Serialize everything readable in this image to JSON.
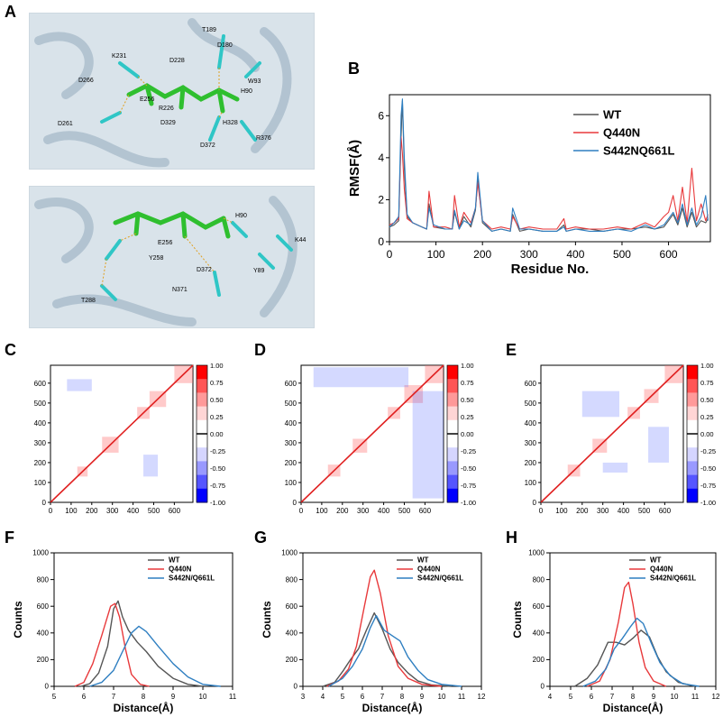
{
  "panels": {
    "A": "A",
    "B": "B",
    "C": "C",
    "D": "D",
    "E": "E",
    "F": "F",
    "G": "G",
    "H": "H"
  },
  "structure_top": {
    "residue_labels": [
      "T189",
      "K231",
      "D228",
      "D180",
      "W93",
      "D266",
      "E256",
      "R226",
      "H90",
      "D261",
      "D329",
      "H328",
      "R376",
      "D372"
    ]
  },
  "structure_bottom": {
    "residue_labels": [
      "H90",
      "K44",
      "E256",
      "Y258",
      "D372",
      "Y89",
      "N371",
      "T288"
    ]
  },
  "colors": {
    "wt": "#555555",
    "q440n": "#e8393b",
    "s442n": "#2f7fc1",
    "pos": "#ff0000",
    "neg": "#0000ff"
  },
  "chart_data": [
    {
      "id": "B",
      "type": "line",
      "xlabel": "Residue No.",
      "ylabel": "RMSF(Å)",
      "xlim": [
        0,
        690
      ],
      "ylim": [
        0,
        7
      ],
      "xticks": [
        "0",
        "100",
        "200",
        "300",
        "400",
        "500",
        "600"
      ],
      "yticks": [
        "0",
        "2",
        "4",
        "6"
      ],
      "legend_position": "top-right",
      "series": [
        {
          "name": "WT",
          "color": "#555555",
          "x": [
            0,
            10,
            20,
            25,
            28,
            32,
            38,
            50,
            70,
            80,
            85,
            95,
            120,
            135,
            140,
            150,
            160,
            175,
            185,
            190,
            200,
            220,
            240,
            260,
            265,
            280,
            300,
            330,
            360,
            375,
            380,
            400,
            430,
            460,
            490,
            520,
            550,
            570,
            590,
            600,
            610,
            620,
            630,
            640,
            650,
            660,
            670,
            680,
            685
          ],
          "y": [
            0.7,
            0.8,
            1.0,
            5.0,
            6.7,
            3.5,
            1.2,
            0.9,
            0.7,
            0.6,
            1.8,
            0.7,
            0.6,
            0.6,
            1.4,
            0.6,
            1.2,
            0.7,
            1.5,
            3.0,
            0.9,
            0.5,
            0.6,
            0.5,
            1.3,
            0.5,
            0.6,
            0.5,
            0.5,
            0.8,
            0.5,
            0.6,
            0.6,
            0.5,
            0.6,
            0.6,
            0.7,
            0.6,
            0.7,
            1.0,
            1.3,
            0.8,
            1.6,
            0.7,
            1.4,
            0.7,
            1.0,
            0.9,
            1.1
          ]
        },
        {
          "name": "Q440N",
          "color": "#e8393b",
          "x": [
            0,
            10,
            20,
            25,
            28,
            32,
            38,
            50,
            70,
            80,
            85,
            95,
            120,
            135,
            140,
            150,
            160,
            175,
            185,
            190,
            200,
            220,
            240,
            260,
            265,
            280,
            300,
            330,
            360,
            375,
            380,
            400,
            430,
            460,
            490,
            520,
            550,
            570,
            590,
            600,
            610,
            620,
            630,
            640,
            650,
            660,
            670,
            680,
            685
          ],
          "y": [
            0.8,
            0.9,
            1.1,
            5.0,
            4.2,
            2.5,
            1.1,
            0.9,
            0.7,
            0.6,
            2.4,
            0.7,
            0.7,
            0.6,
            2.2,
            0.7,
            1.4,
            0.9,
            1.6,
            2.8,
            1.0,
            0.6,
            0.7,
            0.6,
            1.2,
            0.6,
            0.7,
            0.6,
            0.6,
            1.1,
            0.6,
            0.7,
            0.6,
            0.6,
            0.7,
            0.6,
            0.9,
            0.7,
            1.2,
            1.4,
            2.2,
            1.0,
            2.6,
            0.9,
            3.5,
            1.0,
            1.8,
            1.0,
            1.3
          ]
        },
        {
          "name": "S442NQ661L",
          "color": "#2f7fc1",
          "x": [
            0,
            10,
            20,
            25,
            28,
            32,
            38,
            50,
            70,
            80,
            85,
            95,
            120,
            135,
            140,
            150,
            160,
            175,
            185,
            190,
            200,
            220,
            240,
            260,
            265,
            280,
            300,
            330,
            360,
            375,
            380,
            400,
            430,
            460,
            490,
            520,
            550,
            570,
            590,
            600,
            610,
            620,
            630,
            640,
            650,
            660,
            670,
            680,
            685
          ],
          "y": [
            0.7,
            0.9,
            1.2,
            6.0,
            6.8,
            4.0,
            1.3,
            0.9,
            0.7,
            0.6,
            1.6,
            0.8,
            0.6,
            0.6,
            1.5,
            0.6,
            1.0,
            0.8,
            1.6,
            3.3,
            1.0,
            0.5,
            0.6,
            0.5,
            1.6,
            0.6,
            0.6,
            0.5,
            0.5,
            0.7,
            0.5,
            0.6,
            0.5,
            0.5,
            0.6,
            0.5,
            0.8,
            0.6,
            0.8,
            1.1,
            1.4,
            0.9,
            1.8,
            0.8,
            1.6,
            0.8,
            1.2,
            2.2,
            1.0
          ]
        }
      ]
    },
    {
      "id": "C",
      "type": "heatmap",
      "xlim": [
        0,
        690
      ],
      "ylim": [
        0,
        690
      ],
      "xticks": [
        "0",
        "100",
        "200",
        "300",
        "400",
        "500",
        "600"
      ],
      "yticks": [
        "0",
        "100",
        "200",
        "300",
        "400",
        "500",
        "600"
      ],
      "colorbar_ticks": [
        "1.00",
        "0.75",
        "0.50",
        "0.25",
        "0.00",
        "-0.25",
        "-0.50",
        "-0.75",
        "-1.00"
      ],
      "blocks_pos": [
        [
          130,
          180
        ],
        [
          250,
          330
        ],
        [
          420,
          480
        ],
        [
          480,
          560
        ],
        [
          600,
          690
        ]
      ],
      "blocks_neg": [
        [
          [
            80,
            200
          ],
          [
            560,
            620
          ]
        ],
        [
          [
            450,
            520
          ],
          [
            130,
            240
          ]
        ]
      ]
    },
    {
      "id": "D",
      "type": "heatmap",
      "xlim": [
        0,
        690
      ],
      "ylim": [
        0,
        690
      ],
      "xticks": [
        "0",
        "100",
        "200",
        "300",
        "400",
        "500",
        "600"
      ],
      "yticks": [
        "0",
        "100",
        "200",
        "300",
        "400",
        "500",
        "600"
      ],
      "colorbar_ticks": [
        "1.00",
        "0.75",
        "0.50",
        "0.25",
        "0.00",
        "-0.25",
        "-0.50",
        "-0.75",
        "-1.00"
      ],
      "blocks_pos": [
        [
          130,
          190
        ],
        [
          250,
          320
        ],
        [
          420,
          480
        ],
        [
          500,
          590
        ],
        [
          600,
          690
        ]
      ],
      "blocks_neg": [
        [
          [
            60,
            520
          ],
          [
            580,
            680
          ]
        ],
        [
          [
            540,
            690
          ],
          [
            20,
            560
          ]
        ]
      ]
    },
    {
      "id": "E",
      "type": "heatmap",
      "xlim": [
        0,
        690
      ],
      "ylim": [
        0,
        690
      ],
      "xticks": [
        "0",
        "100",
        "200",
        "300",
        "400",
        "500",
        "600"
      ],
      "yticks": [
        "0",
        "100",
        "200",
        "300",
        "400",
        "500",
        "600"
      ],
      "colorbar_ticks": [
        "1.00",
        "0.75",
        "0.50",
        "0.25",
        "0.00",
        "-0.25",
        "-0.50",
        "-0.75",
        "-1.00"
      ],
      "blocks_pos": [
        [
          130,
          190
        ],
        [
          250,
          320
        ],
        [
          420,
          480
        ],
        [
          500,
          570
        ],
        [
          600,
          690
        ]
      ],
      "blocks_neg": [
        [
          [
            200,
            380
          ],
          [
            430,
            560
          ]
        ],
        [
          [
            520,
            620
          ],
          [
            200,
            380
          ]
        ],
        [
          [
            300,
            420
          ],
          [
            150,
            200
          ]
        ]
      ]
    },
    {
      "id": "F",
      "type": "line",
      "xlabel": "Distance(Å)",
      "ylabel": "Counts",
      "xlim": [
        5,
        11
      ],
      "ylim": [
        0,
        1000
      ],
      "xticks": [
        "5",
        "6",
        "7",
        "8",
        "9",
        "10",
        "11"
      ],
      "yticks": [
        "0",
        "200",
        "400",
        "600",
        "800",
        "1000"
      ],
      "legend_position": "top-right",
      "series": [
        {
          "name": "WT",
          "color": "#555555",
          "x": [
            5.9,
            6.2,
            6.5,
            6.8,
            7.0,
            7.15,
            7.3,
            7.5,
            7.8,
            8.1,
            8.5,
            9.0,
            9.5,
            10.0
          ],
          "y": [
            0,
            20,
            100,
            300,
            580,
            640,
            520,
            420,
            330,
            260,
            150,
            60,
            15,
            0
          ]
        },
        {
          "name": "Q440N",
          "color": "#e8393b",
          "x": [
            5.7,
            6.0,
            6.3,
            6.6,
            6.9,
            7.05,
            7.2,
            7.4,
            7.6,
            7.9,
            8.2
          ],
          "y": [
            0,
            30,
            170,
            380,
            600,
            620,
            520,
            280,
            90,
            15,
            0
          ]
        },
        {
          "name": "S442N/Q661L",
          "color": "#2f7fc1",
          "x": [
            6.2,
            6.6,
            7.0,
            7.3,
            7.6,
            7.85,
            8.1,
            8.5,
            9.0,
            9.5,
            10.0,
            10.6
          ],
          "y": [
            0,
            30,
            120,
            260,
            400,
            450,
            410,
            300,
            170,
            70,
            15,
            0
          ]
        }
      ]
    },
    {
      "id": "G",
      "type": "line",
      "xlabel": "Distance(Å)",
      "ylabel": "Counts",
      "xlim": [
        3,
        12
      ],
      "ylim": [
        0,
        1000
      ],
      "xticks": [
        "3",
        "4",
        "5",
        "6",
        "7",
        "8",
        "9",
        "10",
        "11",
        "12"
      ],
      "yticks": [
        "0",
        "200",
        "400",
        "600",
        "800",
        "1000"
      ],
      "legend_position": "top-right",
      "series": [
        {
          "name": "WT",
          "color": "#555555",
          "x": [
            4.0,
            4.6,
            5.0,
            5.4,
            5.8,
            6.2,
            6.6,
            7.0,
            7.4,
            7.8,
            8.3,
            8.8,
            9.5,
            10.5
          ],
          "y": [
            0,
            30,
            110,
            200,
            280,
            420,
            550,
            430,
            280,
            180,
            100,
            40,
            10,
            0
          ]
        },
        {
          "name": "Q440N",
          "color": "#e8393b",
          "x": [
            4.2,
            4.8,
            5.3,
            5.7,
            6.1,
            6.4,
            6.6,
            6.9,
            7.3,
            7.8,
            8.3,
            9.0,
            10.0
          ],
          "y": [
            0,
            40,
            130,
            300,
            600,
            820,
            870,
            700,
            380,
            150,
            60,
            15,
            0
          ]
        },
        {
          "name": "S442N/Q661L",
          "color": "#2f7fc1",
          "x": [
            4.3,
            5.0,
            5.5,
            6.0,
            6.4,
            6.7,
            7.1,
            7.5,
            7.9,
            8.3,
            8.8,
            9.3,
            10.0,
            11.0
          ],
          "y": [
            0,
            60,
            150,
            280,
            440,
            530,
            420,
            380,
            340,
            220,
            120,
            50,
            15,
            0
          ]
        }
      ]
    },
    {
      "id": "H",
      "type": "line",
      "xlabel": "Distance(Å)",
      "ylabel": "Counts",
      "xlim": [
        4,
        12
      ],
      "ylim": [
        0,
        1000
      ],
      "xticks": [
        "4",
        "5",
        "6",
        "7",
        "8",
        "9",
        "10",
        "11",
        "12"
      ],
      "yticks": [
        "0",
        "200",
        "400",
        "600",
        "800",
        "1000"
      ],
      "legend_position": "top-right",
      "series": [
        {
          "name": "WT",
          "color": "#555555",
          "x": [
            5.2,
            5.8,
            6.3,
            6.8,
            7.2,
            7.6,
            8.0,
            8.4,
            8.8,
            9.2,
            9.6,
            10.2,
            11.0
          ],
          "y": [
            0,
            60,
            160,
            330,
            330,
            310,
            360,
            420,
            370,
            220,
            110,
            30,
            0
          ]
        },
        {
          "name": "Q440N",
          "color": "#e8393b",
          "x": [
            5.8,
            6.4,
            6.9,
            7.3,
            7.6,
            7.8,
            8.0,
            8.3,
            8.6,
            9.0,
            9.6
          ],
          "y": [
            0,
            40,
            200,
            480,
            740,
            780,
            620,
            330,
            140,
            40,
            0
          ]
        },
        {
          "name": "S442N/Q661L",
          "color": "#2f7fc1",
          "x": [
            5.6,
            6.2,
            6.7,
            7.1,
            7.5,
            7.9,
            8.2,
            8.5,
            8.9,
            9.3,
            9.8,
            10.4,
            11.2
          ],
          "y": [
            0,
            40,
            130,
            280,
            360,
            450,
            510,
            470,
            320,
            180,
            80,
            20,
            0
          ]
        }
      ]
    }
  ]
}
